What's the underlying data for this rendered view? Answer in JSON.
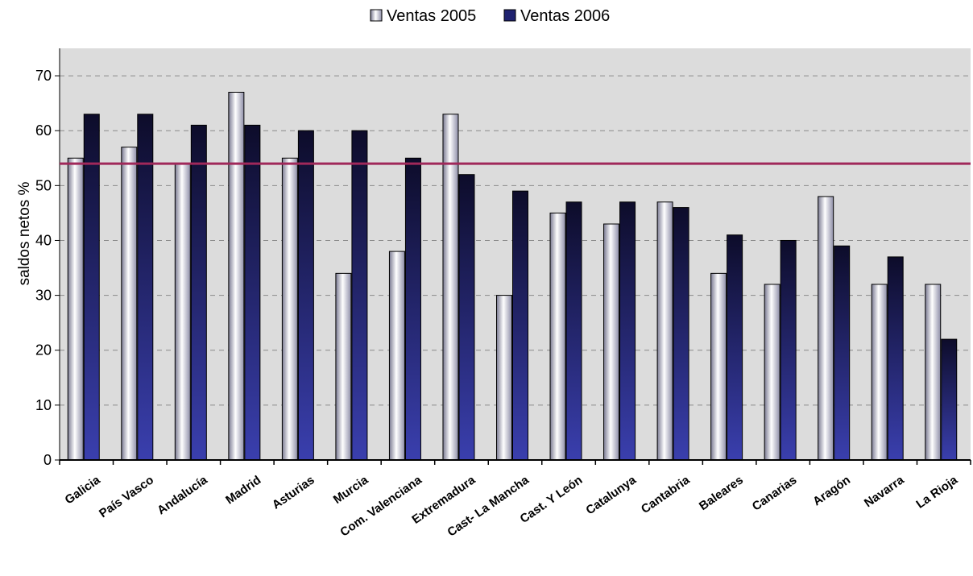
{
  "chart_data": {
    "type": "bar",
    "title": "",
    "xlabel": "",
    "ylabel": "saldos netos %",
    "ylim": [
      0,
      75
    ],
    "yticks": [
      0,
      10,
      20,
      30,
      40,
      50,
      60,
      70
    ],
    "grid": true,
    "legend_position": "top",
    "reference_line": 54,
    "categories": [
      "Galicia",
      "País Vasco",
      "Andalucía",
      "Madrid",
      "Asturias",
      "Murcia",
      "Com. Valenciana",
      "Extremadura",
      "Cast- La Mancha",
      "Cast. Y León",
      "Catalunya",
      "Cantabria",
      "Baleares",
      "Canarias",
      "Aragón",
      "Navarra",
      "La Rioja"
    ],
    "series": [
      {
        "name": "Ventas 2005",
        "values": [
          55,
          57,
          54,
          67,
          55,
          34,
          38,
          63,
          30,
          45,
          43,
          47,
          34,
          32,
          48,
          32,
          32
        ]
      },
      {
        "name": "Ventas 2006",
        "values": [
          63,
          63,
          61,
          61,
          60,
          60,
          55,
          52,
          49,
          47,
          47,
          46,
          41,
          40,
          39,
          37,
          22
        ]
      }
    ]
  },
  "colors": {
    "plot_bg": "#dcdcdc",
    "series_2005": "#e8e8f0",
    "series_2006": "#2b2f8a",
    "reference_line": "#a0285a",
    "grid": "#8a8a8a"
  }
}
